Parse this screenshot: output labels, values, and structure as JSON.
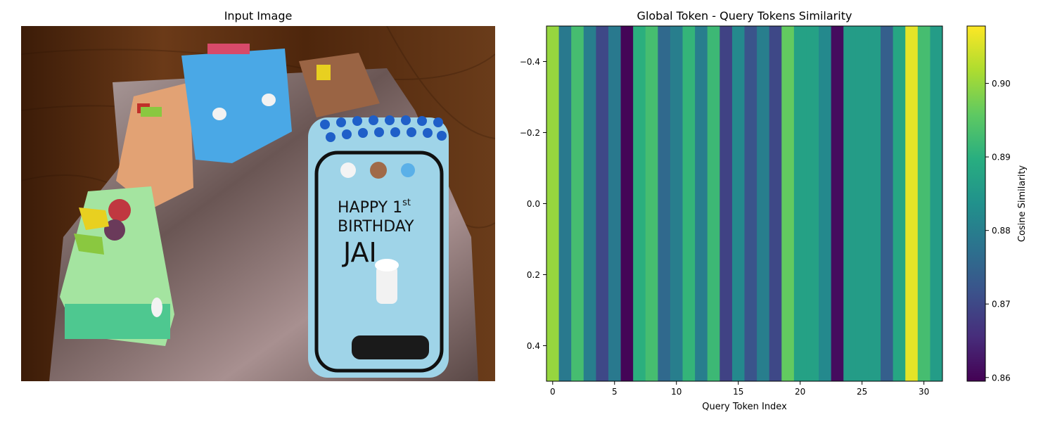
{
  "left_panel": {
    "title": "Input Image",
    "photo_text": {
      "line1": "HAPPY 1",
      "line1_sup": "st",
      "line2": "BIRTHDAY",
      "line3": "JAI"
    },
    "colors": {
      "table": "#5a2e12",
      "foil": "#7a6a68",
      "blue_car": "#4aa3e0",
      "orange_car": "#e0a070",
      "green_car": "#a8e0a0",
      "engine": "#9fd4e8",
      "candy": "#1f5fc8"
    }
  },
  "chart_data": {
    "type": "heatmap",
    "title": "Global Token - Query Tokens Similarity",
    "xlabel": "Query Token Index",
    "ylabel": "",
    "x_ticks": [
      0,
      5,
      10,
      15,
      20,
      25,
      30
    ],
    "y_ticks": [
      -0.4,
      -0.2,
      0.0,
      0.2,
      0.4
    ],
    "y_tick_labels": [
      "−0.4",
      "−0.2",
      "0.0",
      "0.2",
      "0.4"
    ],
    "xlim": [
      -0.5,
      31.5
    ],
    "ylim": [
      -0.5,
      0.5
    ],
    "rows": 1,
    "values": [
      0.9,
      0.879,
      0.893,
      0.88,
      0.87,
      0.879,
      0.86,
      0.89,
      0.893,
      0.876,
      0.88,
      0.891,
      0.88,
      0.892,
      0.869,
      0.882,
      0.872,
      0.88,
      0.87,
      0.896,
      0.887,
      0.887,
      0.882,
      0.861,
      0.886,
      0.886,
      0.886,
      0.874,
      0.888,
      0.906,
      0.893,
      0.886
    ],
    "colormap": "viridis",
    "colorbar": {
      "label": "Cosine Similarity",
      "vmin": 0.8595,
      "vmax": 0.9078,
      "ticks": [
        0.86,
        0.87,
        0.88,
        0.89,
        0.9
      ],
      "tick_labels": [
        "0.86",
        "0.87",
        "0.88",
        "0.89",
        "0.90"
      ]
    }
  }
}
